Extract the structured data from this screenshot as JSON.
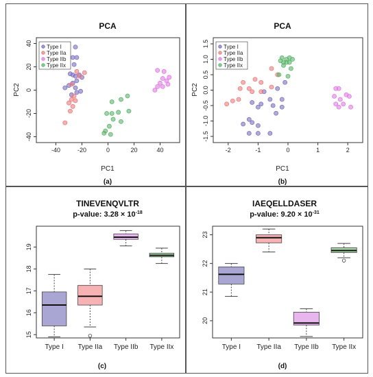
{
  "chart_data": [
    {
      "panel": "(a)",
      "type": "scatter",
      "title": "PCA",
      "xlabel": "PC1",
      "ylabel": "PC2",
      "xlim": [
        -55,
        55
      ],
      "ylim": [
        -45,
        45
      ],
      "xticks": [
        -40,
        -20,
        0,
        20,
        40
      ],
      "yticks": [
        -40,
        -20,
        0,
        20,
        40
      ],
      "legend": {
        "position": "top-left",
        "entries": [
          "Type I",
          "Type IIa",
          "Type IIb",
          "Type IIx"
        ]
      },
      "series": [
        {
          "name": "Type I",
          "color": "#7b72c4",
          "points": [
            [
              -25,
              37
            ],
            [
              -27,
              28
            ],
            [
              -24,
              28
            ],
            [
              -26,
              22
            ],
            [
              -29,
              14
            ],
            [
              -27,
              13
            ],
            [
              -25,
              12
            ],
            [
              -22,
              13
            ],
            [
              -20,
              11
            ],
            [
              -24,
              8
            ],
            [
              -27,
              6
            ],
            [
              -30,
              4
            ],
            [
              -33,
              2
            ],
            [
              -25,
              2
            ],
            [
              -21,
              -1
            ],
            [
              -24,
              -2
            ],
            [
              -28,
              -4
            ]
          ]
        },
        {
          "name": "Type IIa",
          "color": "#f07b7b",
          "points": [
            [
              -22,
              12
            ],
            [
              -18,
              15
            ],
            [
              -24,
              16
            ],
            [
              -28,
              5
            ],
            [
              -26,
              -5
            ],
            [
              -28,
              -8
            ],
            [
              -25,
              -9
            ],
            [
              -30,
              -11
            ],
            [
              -27,
              -14
            ],
            [
              -29,
              -18
            ],
            [
              -33,
              -28
            ]
          ]
        },
        {
          "name": "Type IIb",
          "color": "#e27be6",
          "points": [
            [
              38,
              17
            ],
            [
              43,
              16
            ],
            [
              47,
              11
            ],
            [
              42,
              10
            ],
            [
              45,
              8
            ],
            [
              40,
              6
            ],
            [
              46,
              5
            ],
            [
              38,
              3
            ],
            [
              42,
              3
            ],
            [
              36,
              0
            ]
          ]
        },
        {
          "name": "Type IIx",
          "color": "#5bb66b",
          "points": [
            [
              15,
              -5
            ],
            [
              10,
              -8
            ],
            [
              3,
              -10
            ],
            [
              -1,
              -20
            ],
            [
              3,
              -20
            ],
            [
              8,
              -19
            ],
            [
              16,
              -18
            ],
            [
              4,
              -25
            ],
            [
              10,
              -27
            ],
            [
              1,
              -31
            ],
            [
              -2,
              -35
            ],
            [
              -3,
              -37
            ],
            [
              2,
              -38
            ]
          ]
        }
      ]
    },
    {
      "panel": "(b)",
      "type": "scatter",
      "title": "PCA",
      "xlabel": "PC1",
      "ylabel": "PC2",
      "xlim": [
        -2.5,
        2.5
      ],
      "ylim": [
        -1.7,
        1.7
      ],
      "xticks": [
        -2,
        -1,
        0,
        1,
        2
      ],
      "yticks": [
        -1.5,
        -1.0,
        -0.5,
        0.0,
        0.5,
        1.0,
        1.5
      ],
      "legend": {
        "position": "top-left",
        "entries": [
          "Type I",
          "Type IIa",
          "Type IIb",
          "Type IIx"
        ]
      },
      "series": [
        {
          "name": "Type I",
          "color": "#7b72c4",
          "points": [
            [
              -0.1,
              0.25
            ],
            [
              -0.35,
              0.05
            ],
            [
              -0.8,
              -0.05
            ],
            [
              -0.6,
              -0.3
            ],
            [
              -0.2,
              -0.3
            ],
            [
              -1.2,
              -0.4
            ],
            [
              -0.9,
              -0.45
            ],
            [
              -1.0,
              -0.55
            ],
            [
              -0.5,
              -0.5
            ],
            [
              -0.2,
              -0.55
            ],
            [
              -0.4,
              -0.75
            ],
            [
              -1.3,
              -0.95
            ],
            [
              -1.2,
              -1.05
            ],
            [
              -1.5,
              -1.1
            ],
            [
              -1.0,
              -1.15
            ],
            [
              -1.3,
              -1.4
            ],
            [
              -1.0,
              -1.4
            ],
            [
              -0.6,
              -1.4
            ]
          ]
        },
        {
          "name": "Type IIa",
          "color": "#f07b7b",
          "points": [
            [
              -0.55,
              0.7
            ],
            [
              -0.35,
              0.5
            ],
            [
              -1.1,
              0.35
            ],
            [
              -0.9,
              0.25
            ],
            [
              -1.5,
              0.25
            ],
            [
              -0.55,
              0.1
            ],
            [
              -1.3,
              0.05
            ],
            [
              -1.6,
              0.05
            ],
            [
              -0.9,
              -0.05
            ],
            [
              -1.2,
              -0.05
            ],
            [
              -1.65,
              -0.3
            ],
            [
              -1.85,
              -0.35
            ],
            [
              -2.05,
              -0.45
            ]
          ]
        },
        {
          "name": "Type IIb",
          "color": "#e27be6",
          "points": [
            [
              1.6,
              0.05
            ],
            [
              1.7,
              0.05
            ],
            [
              1.95,
              -0.15
            ],
            [
              2.05,
              -0.2
            ],
            [
              1.55,
              -0.2
            ],
            [
              1.75,
              -0.3
            ],
            [
              1.85,
              -0.45
            ],
            [
              1.7,
              -0.55
            ],
            [
              2.1,
              -0.55
            ],
            [
              1.6,
              -0.45
            ]
          ]
        },
        {
          "name": "Type IIx",
          "color": "#5bb66b",
          "points": [
            [
              -0.2,
              1.05
            ],
            [
              0.05,
              1.05
            ],
            [
              -0.05,
              1.0
            ],
            [
              0.15,
              1.0
            ],
            [
              -0.25,
              0.95
            ],
            [
              -0.15,
              0.9
            ],
            [
              -0.05,
              0.9
            ],
            [
              0.05,
              0.9
            ],
            [
              -0.15,
              0.8
            ],
            [
              0.1,
              0.7
            ],
            [
              -0.3,
              0.5
            ],
            [
              0.0,
              0.45
            ]
          ]
        }
      ]
    },
    {
      "panel": "(c)",
      "type": "box",
      "title": "TINEVENQVLTR",
      "pvalue_prefix": "p-value: 3.28 × 10",
      "pvalue_exp": "-18",
      "ylim": [
        14.85,
        19.95
      ],
      "yticks": [
        15,
        16,
        17,
        18,
        19
      ],
      "categories": [
        "Type I",
        "Type IIa",
        "Type IIb",
        "Type IIx"
      ],
      "colors": [
        "#a9a6d3",
        "#f7b3b3",
        "#e9b5ee",
        "#a9d8a8"
      ],
      "boxes": [
        {
          "min": 14.9,
          "q1": 15.4,
          "median": 16.35,
          "q3": 16.95,
          "max": 17.75,
          "outliers": []
        },
        {
          "min": 15.35,
          "q1": 16.35,
          "median": 16.75,
          "q3": 17.25,
          "max": 18.0,
          "outliers": [
            14.95
          ]
        },
        {
          "min": 19.05,
          "q1": 19.35,
          "median": 19.45,
          "q3": 19.6,
          "max": 19.75,
          "outliers": []
        },
        {
          "min": 18.25,
          "q1": 18.55,
          "median": 18.62,
          "q3": 18.72,
          "max": 18.95,
          "outliers": []
        }
      ]
    },
    {
      "panel": "(d)",
      "type": "box",
      "title": "IAEQELLDASER",
      "pvalue_prefix": "p-value: 9.20 × 10",
      "pvalue_exp": "-31",
      "ylim": [
        19.4,
        23.3
      ],
      "yticks": [
        20,
        21,
        22,
        23
      ],
      "categories": [
        "Type I",
        "Type IIa",
        "Type IIb",
        "Type IIx"
      ],
      "colors": [
        "#a9a6d3",
        "#f7b3b3",
        "#e9b5ee",
        "#a9d8a8"
      ],
      "boxes": [
        {
          "min": 20.85,
          "q1": 21.28,
          "median": 21.62,
          "q3": 21.88,
          "max": 22.0,
          "outliers": []
        },
        {
          "min": 22.4,
          "q1": 22.72,
          "median": 22.9,
          "q3": 23.0,
          "max": 23.2,
          "outliers": []
        },
        {
          "min": 19.45,
          "q1": 19.85,
          "median": 19.92,
          "q3": 20.3,
          "max": 20.42,
          "outliers": []
        },
        {
          "min": 22.2,
          "q1": 22.38,
          "median": 22.45,
          "q3": 22.55,
          "max": 22.7,
          "outliers": [
            22.1
          ]
        }
      ]
    }
  ]
}
